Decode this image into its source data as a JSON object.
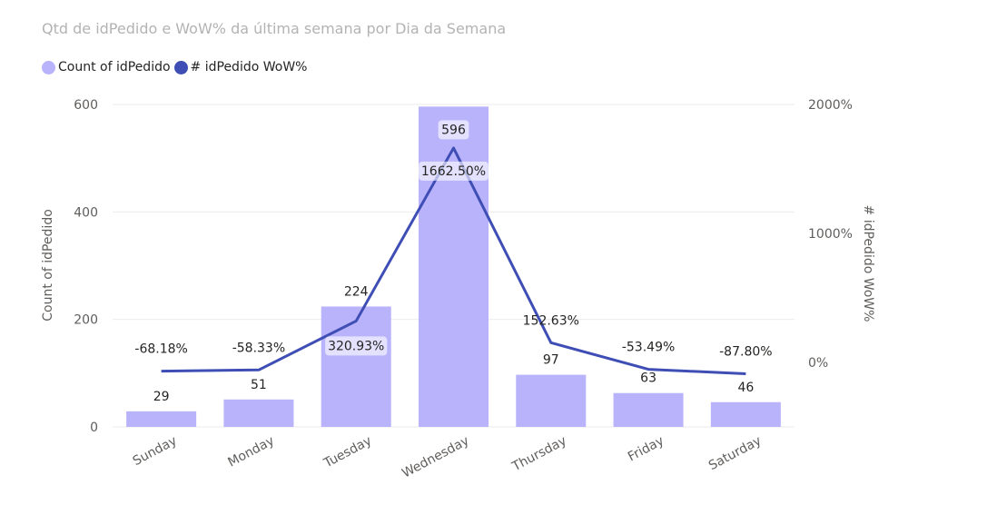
{
  "title": "Qtd de idPedido e WoW% da última semana por Dia da Semana",
  "legend": [
    {
      "label": "Count of idPedido",
      "color": "#b8b3fb"
    },
    {
      "label": "# idPedido WoW%",
      "color": "#3f4eb5"
    }
  ],
  "chart_data": {
    "type": "bar",
    "combo": "bar + line (secondary axis)",
    "title": "Qtd de idPedido e WoW% da última semana por Dia da Semana",
    "categories": [
      "Sunday",
      "Monday",
      "Tuesday",
      "Wednesday",
      "Thursday",
      "Friday",
      "Saturday"
    ],
    "series": [
      {
        "name": "Count of idPedido",
        "type": "bar",
        "axis": "left",
        "color": "#b8b3fb",
        "values": [
          29,
          51,
          224,
          596,
          97,
          63,
          46
        ],
        "labels": [
          "29",
          "51",
          "224",
          "596",
          "97",
          "63",
          "46"
        ]
      },
      {
        "name": "# idPedido WoW%",
        "type": "line",
        "axis": "right",
        "color": "#3f4eb5",
        "values": [
          -68.18,
          -58.33,
          320.93,
          1662.5,
          152.63,
          -53.49,
          -87.8
        ],
        "labels": [
          "-68.18%",
          "-58.33%",
          "320.93%",
          "1662.50%",
          "152.63%",
          "-53.49%",
          "-87.80%"
        ]
      }
    ],
    "ylabel": "Count of idPedido",
    "y2label": "# idPedido WoW%",
    "ylim": [
      0,
      600
    ],
    "y2lim": [
      -500,
      2000
    ],
    "yticks": [
      "0",
      "200",
      "400",
      "600"
    ],
    "y2ticks": [
      "0%",
      "1000%",
      "2000%"
    ],
    "grid": true,
    "legend_position": "top-left"
  }
}
